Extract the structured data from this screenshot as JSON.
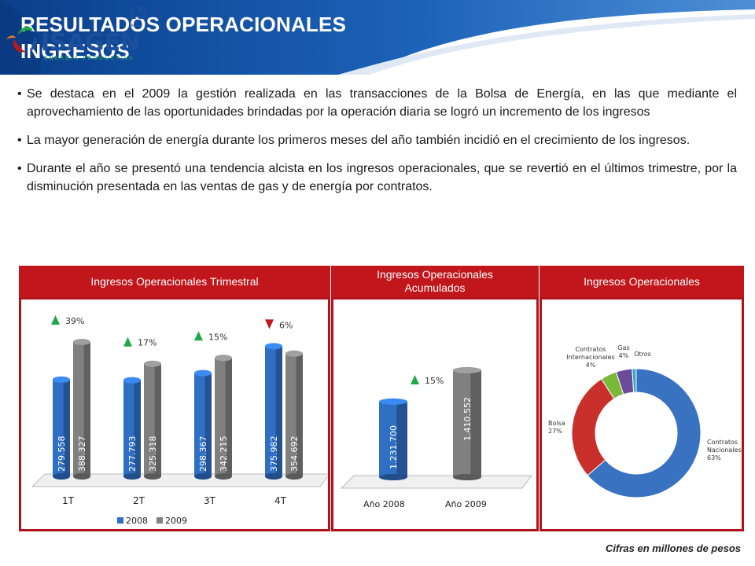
{
  "header": {
    "title_line1": "RESULTADOS OPERACIONALES",
    "title_line2": "INGRESOS",
    "logo_name": "ISAGEN",
    "logo_tagline": "ENERGÍA PRODUCTIVA",
    "logo_anniversary": "15",
    "logo_anniversary_label": "AÑOS"
  },
  "bullets": [
    "Se destaca en el 2009 la gestión realizada en las transacciones de la Bolsa de Energía, en las que mediante el aprovechamiento de las oportunidades brindadas por la operación diaria se logró un incremento de los ingresos",
    "La mayor generación de energía durante los primeros meses del año también incidió en el crecimiento de los ingresos.",
    "Durante el año se presentó una tendencia alcista en los ingresos operacionales, que se revertió en el últimos trimestre, por la disminución presentada en las ventas de gas y de energía por contratos."
  ],
  "panels": {
    "trimestral": "Ingresos Operacionales Trimestral",
    "acumulados": "Ingresos Operacionales Acumulados",
    "operacionales": "Ingresos Operacionales"
  },
  "footnote": "Cifras en millones de pesos",
  "colors": {
    "series_2008": "#2f6fc4",
    "series_2009": "#808080",
    "accent_red": "#c0161c",
    "up": "#1ea84a",
    "down": "#c0161c"
  },
  "chart_data": [
    {
      "type": "bar",
      "categories": [
        "1T",
        "2T",
        "3T",
        "4T"
      ],
      "series": [
        {
          "name": "2008",
          "values": [
            279558,
            277793,
            298367,
            375982
          ],
          "labels": [
            "279.558",
            "277.793",
            "298.367",
            "375.982"
          ]
        },
        {
          "name": "2009",
          "values": [
            388327,
            325318,
            342215,
            354692
          ],
          "labels": [
            "388.327",
            "325.318",
            "342.215",
            "354.692"
          ]
        }
      ],
      "changes": [
        {
          "label": "39%",
          "direction": "up"
        },
        {
          "label": "17%",
          "direction": "up"
        },
        {
          "label": "15%",
          "direction": "up"
        },
        {
          "label": "6%",
          "direction": "down"
        }
      ],
      "legend_position": "bottom"
    },
    {
      "type": "bar",
      "categories": [
        "Año 2008",
        "Año 2009"
      ],
      "values": [
        1231700,
        1410552
      ],
      "labels": [
        "1.231.700",
        "1.410.552"
      ],
      "change": {
        "label": "15%",
        "direction": "up"
      }
    },
    {
      "type": "pie",
      "slices": [
        {
          "name": "Contratos Nacionales",
          "pct": 63,
          "label_lines": [
            "Contratos",
            "Nacionales",
            "63%"
          ],
          "color": "#3a72c2"
        },
        {
          "name": "Bolsa",
          "pct": 27,
          "label_lines": [
            "Bolsa",
            "27%"
          ],
          "color": "#c9302c"
        },
        {
          "name": "Contratos Internacionales",
          "pct": 4,
          "label_lines": [
            "Contratos",
            "Internacionales",
            "4%"
          ],
          "color": "#7ab83a"
        },
        {
          "name": "Gas",
          "pct": 4,
          "label_lines": [
            "Gas",
            "4%"
          ],
          "color": "#6c4c9a"
        },
        {
          "name": "Otros",
          "pct": 1,
          "label_lines": [
            "Otros"
          ],
          "color": "#3aa8c8"
        }
      ]
    }
  ]
}
